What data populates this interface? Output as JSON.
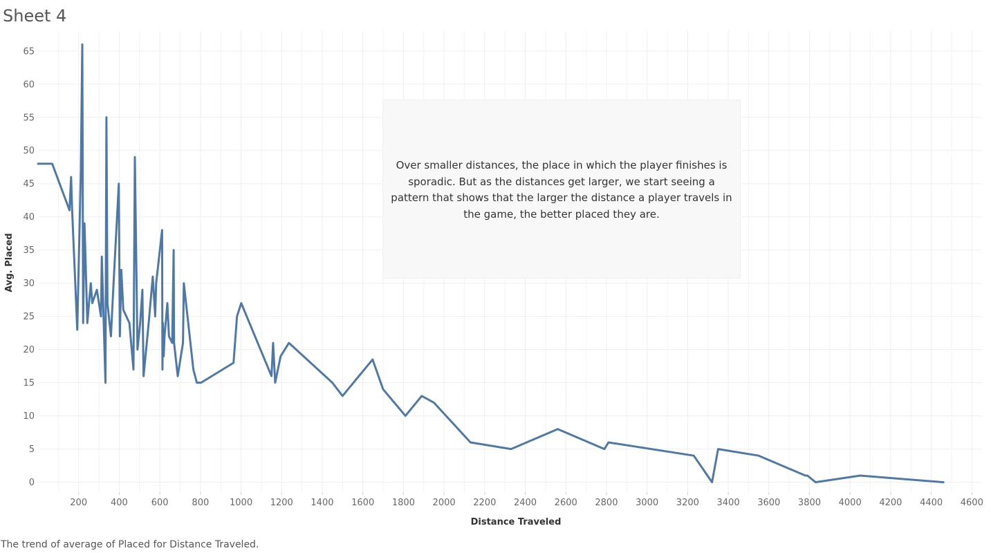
{
  "sheet": {
    "title": "Sheet 4",
    "caption": "The trend of average of Placed for Distance Traveled."
  },
  "annotation": {
    "text": "Over smaller distances, the place in which the player finishes is sporadic. But as the distances get larger, we start seeing a pattern that shows that the larger the distance a player travels in the game, the better placed they are."
  },
  "chart_data": {
    "type": "line",
    "xlabel": "Distance Traveled",
    "ylabel": "Avg. Placed",
    "xlim": [
      0,
      4650
    ],
    "ylim": [
      -1.5,
      68
    ],
    "x_ticks": [
      200,
      400,
      600,
      800,
      1000,
      1200,
      1400,
      1600,
      1800,
      2000,
      2200,
      2400,
      2600,
      2800,
      3000,
      3200,
      3400,
      3600,
      3800,
      4000,
      4200,
      4400,
      4600
    ],
    "y_ticks": [
      0,
      5,
      10,
      15,
      20,
      25,
      30,
      35,
      40,
      45,
      50,
      55,
      60,
      65
    ],
    "grid": true,
    "line_color": "#4e79a7",
    "series": [
      {
        "x": [
          0,
          70,
          155,
          163,
          168,
          193,
          211,
          218,
          222,
          229,
          243,
          251,
          260,
          267,
          290,
          310,
          314,
          332,
          337,
          342,
          359,
          372,
          398,
          403,
          410,
          420,
          450,
          470,
          477,
          490,
          503,
          514,
          520,
          545,
          565,
          577,
          582,
          611,
          613,
          615,
          619,
          623,
          637,
          645,
          661,
          668,
          670,
          688,
          714,
          718,
          765,
          782,
          803,
          963,
          980,
          1001,
          1150,
          1158,
          1168,
          1195,
          1236,
          1450,
          1500,
          1648,
          1700,
          1810,
          1890,
          1950,
          2130,
          2330,
          2560,
          2790,
          2810,
          3230,
          3320,
          3350,
          3550,
          3780,
          3790,
          3830,
          4050,
          4460
        ],
        "y": [
          48,
          48,
          41,
          46,
          41,
          23,
          47,
          66,
          24,
          39,
          24,
          27,
          30,
          27,
          29,
          25,
          34,
          15,
          55,
          27,
          22,
          30,
          45,
          22,
          32,
          26,
          24,
          17,
          49,
          20,
          24,
          29,
          16,
          24,
          31,
          25,
          30,
          38,
          17,
          24,
          19,
          22,
          27,
          22,
          21,
          35,
          21,
          16,
          21,
          30,
          17,
          15,
          15,
          18,
          25,
          27,
          16,
          21,
          15,
          19,
          21,
          15,
          13,
          18.5,
          14,
          10,
          13,
          12,
          6,
          5,
          8,
          5,
          6,
          4,
          0,
          5,
          4,
          1,
          1,
          0,
          1,
          0
        ]
      }
    ]
  }
}
